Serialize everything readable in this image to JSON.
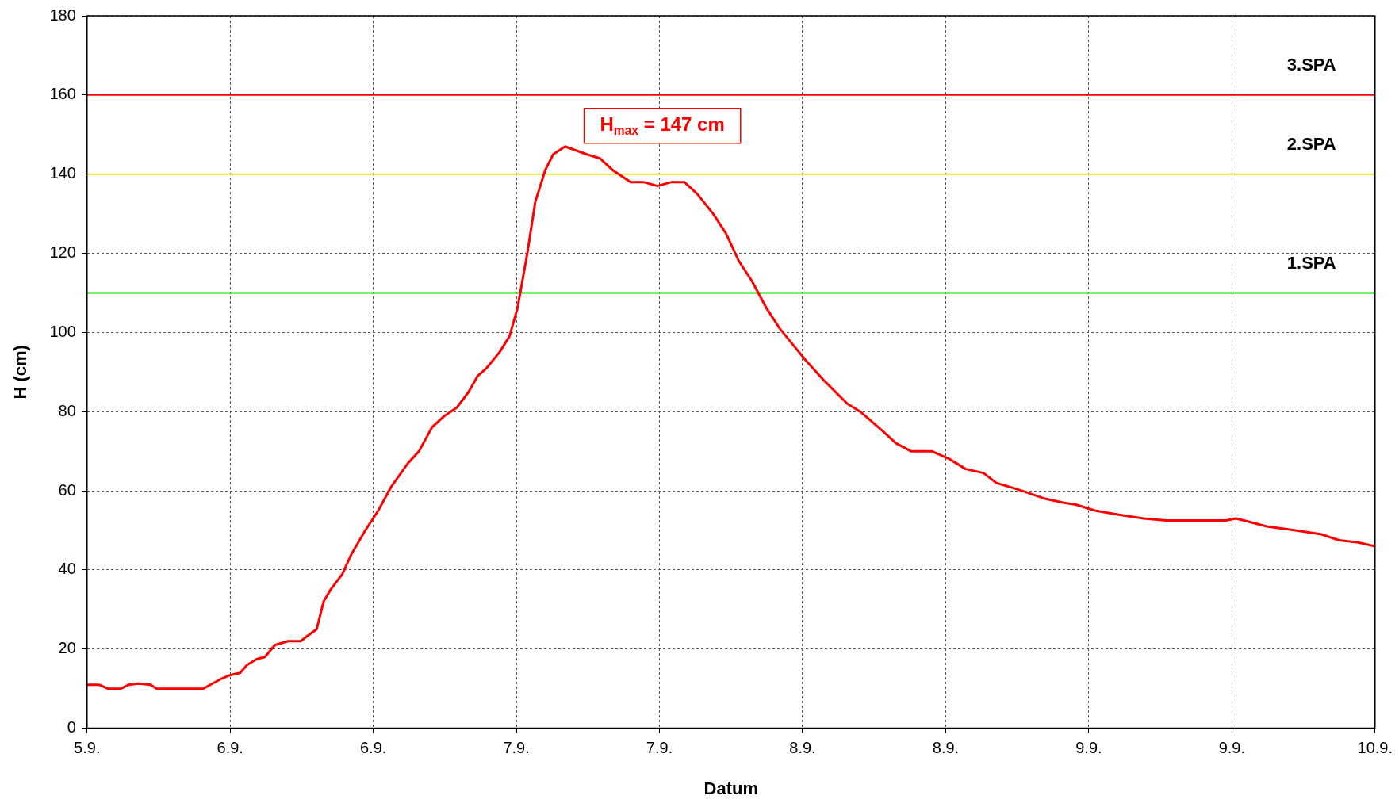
{
  "chart_data": {
    "type": "line",
    "xlabel": "Datum",
    "ylabel": "H (cm)",
    "x": [
      "--09-05T12:00",
      "--09-05T13:00",
      "--09-05T13:45",
      "--09-05T14:50",
      "--09-05T15:30",
      "--09-05T16:20",
      "--09-05T17:20",
      "--09-05T17:50",
      "--09-05T21:45",
      "--09-05T22:20",
      "--09-05T23:15",
      "--09-06T00:05",
      "--09-06T00:50",
      "--09-06T01:25",
      "--09-06T02:15",
      "--09-06T02:55",
      "--09-06T03:45",
      "--09-06T04:50",
      "--09-06T05:55",
      "--09-06T06:20",
      "--09-06T07:15",
      "--09-06T07:50",
      "--09-06T08:25",
      "--09-06T09:25",
      "--09-06T10:10",
      "--09-06T11:20",
      "--09-06T12:25",
      "--09-06T13:30",
      "--09-06T14:55",
      "--09-06T15:50",
      "--09-06T16:55",
      "--09-06T18:00",
      "--09-06T19:00",
      "--09-06T20:00",
      "--09-06T20:45",
      "--09-06T21:30",
      "--09-06T22:35",
      "--09-06T23:25",
      "--09-07T00:05",
      "--09-07T00:55",
      "--09-07T01:35",
      "--09-07T02:25",
      "--09-07T03:05",
      "--09-07T04:05",
      "--09-07T05:00",
      "--09-07T05:55",
      "--09-07T07:00",
      "--09-07T08:05",
      "--09-07T09:35",
      "--09-07T10:40",
      "--09-07T11:50",
      "--09-07T13:00",
      "--09-07T14:05",
      "--09-07T15:10",
      "--09-07T16:30",
      "--09-07T17:35",
      "--09-07T18:40",
      "--09-07T19:45",
      "--09-07T21:00",
      "--09-07T22:05",
      "--09-07T23:10",
      "--09-08T00:15",
      "--09-08T01:45",
      "--09-08T03:45",
      "--09-08T04:50",
      "--09-08T06:45",
      "--09-08T07:50",
      "--09-08T09:05",
      "--09-08T10:50",
      "--09-08T12:20",
      "--09-08T13:40",
      "--09-08T15:10",
      "--09-08T16:15",
      "--09-08T18:25",
      "--09-08T20:20",
      "--09-08T21:50",
      "--09-08T22:55",
      "--09-09T00:30",
      "--09-09T02:25",
      "--09-09T04:35",
      "--09-09T06:30",
      "--09-09T11:30",
      "--09-09T12:20",
      "--09-09T13:00",
      "--09-09T14:55",
      "--09-09T17:20",
      "--09-09T19:30",
      "--09-09T21:00",
      "--09-09T22:30",
      "--09-10T00:00"
    ],
    "series": [
      {
        "color": "#ff0000",
        "values": [
          11,
          11,
          10,
          10,
          11,
          11.3,
          11,
          10,
          10,
          11,
          12.5,
          13.5,
          14,
          16,
          17.5,
          18,
          21,
          22,
          22,
          23,
          25,
          32,
          35,
          39,
          44,
          50,
          55,
          61,
          67,
          70,
          76,
          79,
          81,
          85,
          89,
          91,
          95,
          99,
          106,
          120,
          133,
          141,
          145,
          147,
          146,
          145,
          144,
          141,
          138,
          138,
          137,
          138,
          138,
          135,
          130,
          125,
          118,
          113,
          106,
          101,
          97,
          93,
          88,
          82,
          80,
          75,
          72,
          70,
          70,
          68,
          65.5,
          64.5,
          62,
          60,
          58,
          57,
          56.5,
          55,
          54,
          53,
          52.5,
          52.5,
          53,
          52.5,
          51,
          50,
          49,
          47.5,
          47,
          46
        ]
      }
    ],
    "xlim": [
      "--09-05T12:00",
      "--09-10T00:00"
    ],
    "xticks": [
      {
        "value": "--09-05T12:00",
        "label": "5.9."
      },
      {
        "value": "--09-06T00:00",
        "label": "6.9."
      },
      {
        "value": "--09-06T12:00",
        "label": "6.9."
      },
      {
        "value": "--09-07T00:00",
        "label": "7.9."
      },
      {
        "value": "--09-07T12:00",
        "label": "7.9."
      },
      {
        "value": "--09-08T00:00",
        "label": "8.9."
      },
      {
        "value": "--09-08T12:00",
        "label": "8.9."
      },
      {
        "value": "--09-09T00:00",
        "label": "9.9."
      },
      {
        "value": "--09-09T12:00",
        "label": "9.9."
      },
      {
        "value": "--09-10T00:00",
        "label": "10.9."
      }
    ],
    "ylim": [
      0,
      180
    ],
    "yticks": [
      0,
      20,
      40,
      60,
      80,
      100,
      120,
      140,
      160,
      180
    ],
    "ref_lines": [
      {
        "axis": "y",
        "value": 110,
        "label": "1.SPA",
        "color": "#00dd00"
      },
      {
        "axis": "y",
        "value": 140,
        "label": "2.SPA",
        "color": "#e6e62a"
      },
      {
        "axis": "y",
        "value": 160,
        "label": "3.SPA",
        "color": "#ff0000"
      }
    ],
    "annotations": [
      {
        "text": "H$_{max}$ = 147 cm",
        "x": "--09-07T04:05",
        "y": 147
      }
    ],
    "grid": true,
    "marker": "none",
    "line_style": "solid",
    "legend": false
  }
}
